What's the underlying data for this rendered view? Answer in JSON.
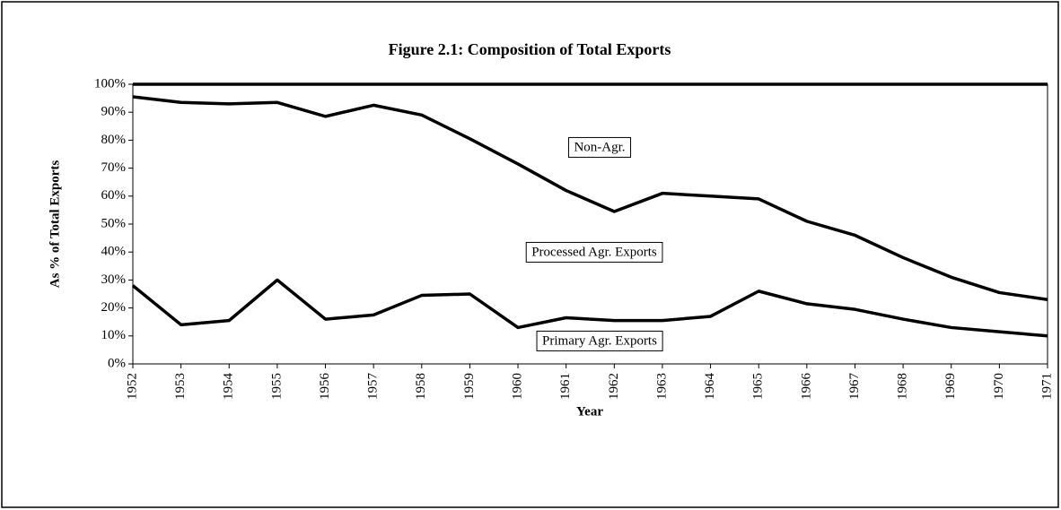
{
  "chart_data": {
    "type": "stacked_line",
    "title": "Figure 2.1:  Composition of Total Exports",
    "x_label": "Year",
    "y_label": "As % of Total Exports",
    "categories": [
      "1952",
      "1953",
      "1954",
      "1955",
      "1956",
      "1957",
      "1958",
      "1959",
      "1960",
      "1961",
      "1962",
      "1963",
      "1964",
      "1965",
      "1966",
      "1967",
      "1968",
      "1969",
      "1970",
      "1971"
    ],
    "series": [
      {
        "name": "Primary Agr. Exports",
        "color": "#000000",
        "values": [
          28,
          14,
          15.5,
          30,
          16,
          17.5,
          24.5,
          25,
          13,
          16.5,
          15.5,
          15.5,
          17,
          26,
          21.5,
          19.5,
          16,
          13,
          11.5,
          10
        ]
      },
      {
        "name": "Processed Agr. Exports",
        "color": "#000000",
        "values": [
          67.5,
          79.5,
          77.5,
          63.5,
          72.5,
          75,
          64.5,
          55.5,
          58.5,
          45.5,
          39,
          45.5,
          43,
          33,
          29.5,
          26.5,
          22,
          18,
          14,
          13
        ]
      },
      {
        "name": "Non-Agr.",
        "color": "#000000",
        "values": [
          4.5,
          6.5,
          7,
          6.5,
          11.5,
          7.5,
          11,
          19.5,
          28.5,
          38,
          45.5,
          39,
          40,
          41,
          49,
          54,
          62,
          69,
          74.5,
          77
        ]
      }
    ],
    "ylim": [
      0,
      100
    ],
    "yticks": [
      {
        "value": 0,
        "label": "0%"
      },
      {
        "value": 10,
        "label": "10%"
      },
      {
        "value": 20,
        "label": "20%"
      },
      {
        "value": 30,
        "label": "30%"
      },
      {
        "value": 40,
        "label": "40%"
      },
      {
        "value": 50,
        "label": "50%"
      },
      {
        "value": 60,
        "label": "60%"
      },
      {
        "value": 70,
        "label": "70%"
      },
      {
        "value": 80,
        "label": "80%"
      },
      {
        "value": 90,
        "label": "90%"
      },
      {
        "value": 100,
        "label": "100%"
      }
    ]
  }
}
